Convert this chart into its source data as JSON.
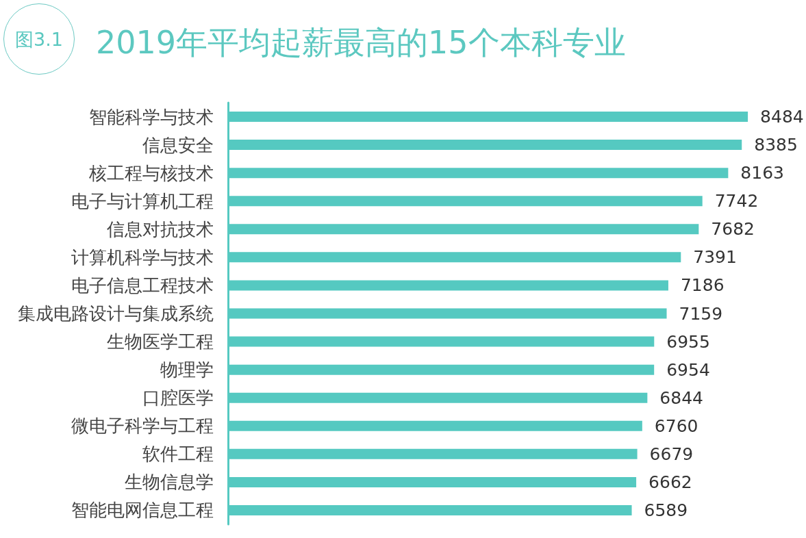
{
  "chart_data": {
    "type": "bar",
    "orientation": "horizontal",
    "title": "2019年平均起薪最高的15个本科专业",
    "annotations": [
      "图3.1"
    ],
    "categories": [
      "智能科学与技术",
      "信息安全",
      "核工程与核技术",
      "电子与计算机工程",
      "信息对抗技术",
      "计算机科学与技术",
      "电子信息工程技术",
      "集成电路设计与集成系统",
      "生物医学工程",
      "物理学",
      "口腔医学",
      "微电子科学与工程",
      "软件工程",
      "生物信息学",
      "智能电网信息工程"
    ],
    "values": [
      8484,
      8385,
      8163,
      7742,
      7682,
      7391,
      7186,
      7159,
      6955,
      6954,
      6844,
      6760,
      6679,
      6662,
      6589
    ],
    "color": "#55c9c1",
    "data_labels": true,
    "tick_labels": "y"
  }
}
